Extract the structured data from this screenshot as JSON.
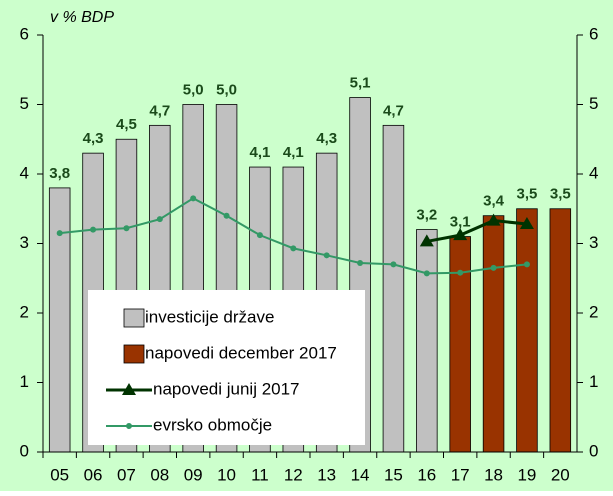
{
  "chart_data": {
    "type": "bar",
    "ylabel": "v % BDP",
    "categories": [
      "05",
      "06",
      "07",
      "08",
      "09",
      "10",
      "11",
      "12",
      "13",
      "14",
      "15",
      "16",
      "17",
      "18",
      "19",
      "20"
    ],
    "series": [
      {
        "name": "investicije države",
        "type": "bar",
        "color": "#c0c0c0",
        "values": [
          3.8,
          4.3,
          4.5,
          4.7,
          5.0,
          5.0,
          4.1,
          4.1,
          4.3,
          5.1,
          4.7,
          3.2,
          null,
          null,
          null,
          null
        ],
        "value_labels": [
          "3,8",
          "4,3",
          "4,5",
          "4,7",
          "5,0",
          "5,0",
          "4,1",
          "4,1",
          "4,3",
          "5,1",
          "4,7",
          "3,2",
          null,
          null,
          null,
          null
        ]
      },
      {
        "name": "napovedi december 2017",
        "type": "bar",
        "color": "#993300",
        "values": [
          null,
          null,
          null,
          null,
          null,
          null,
          null,
          null,
          null,
          null,
          null,
          null,
          3.1,
          3.4,
          3.5,
          3.5
        ],
        "value_labels": [
          null,
          null,
          null,
          null,
          null,
          null,
          null,
          null,
          null,
          null,
          null,
          null,
          "3,1",
          "3,4",
          "3,5",
          "3,5"
        ]
      },
      {
        "name": "napovedi junij 2017",
        "type": "line",
        "marker": "triangle",
        "color": "#003300",
        "values": [
          null,
          null,
          null,
          null,
          null,
          null,
          null,
          null,
          null,
          null,
          null,
          3.03,
          3.12,
          3.33,
          3.28,
          null
        ]
      },
      {
        "name": "evrsko območje",
        "type": "line",
        "marker": "circle",
        "color": "#339966",
        "values": [
          3.15,
          3.2,
          3.22,
          3.35,
          3.65,
          3.4,
          3.12,
          2.93,
          2.83,
          2.72,
          2.7,
          2.57,
          2.58,
          2.65,
          2.7,
          null
        ]
      }
    ],
    "ylim": [
      0,
      6
    ],
    "yticks": [
      0,
      1,
      2,
      3,
      4,
      5,
      6
    ],
    "y2lim": [
      0,
      6
    ],
    "y2ticks": [
      0,
      1,
      2,
      3,
      4,
      5,
      6
    ],
    "legend": "lower left",
    "background": "#ccffcc"
  }
}
